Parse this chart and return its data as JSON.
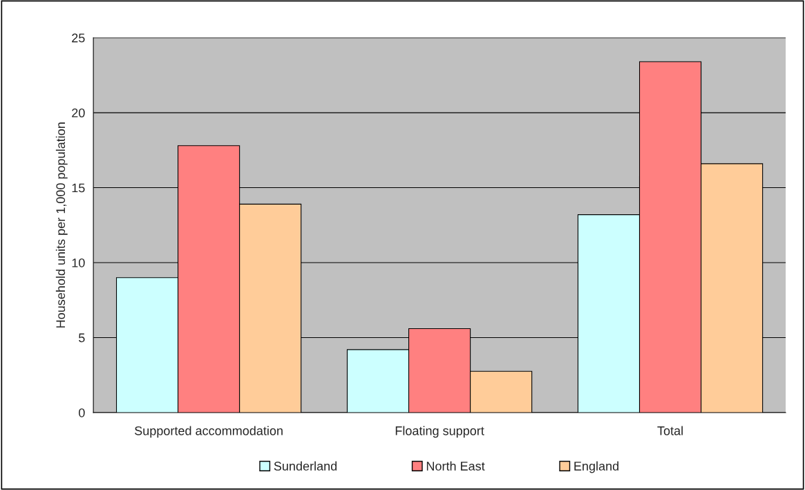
{
  "chart_data": {
    "type": "bar",
    "ylabel": "Household units per 1,000 population",
    "categories": [
      "Supported accommodation",
      "Floating support",
      "Total"
    ],
    "series": [
      {
        "name": "Sunderland",
        "color": "#ccffff",
        "values": [
          9.0,
          4.2,
          13.2
        ]
      },
      {
        "name": "North East",
        "color": "#ff8080",
        "values": [
          17.8,
          5.6,
          23.4
        ]
      },
      {
        "name": "England",
        "color": "#ffcc99",
        "values": [
          13.9,
          2.75,
          16.6
        ]
      }
    ],
    "ylim": [
      0,
      25
    ],
    "yticks": [
      0,
      5,
      10,
      15,
      20,
      25
    ],
    "grid": "y",
    "legend": "bottom"
  }
}
